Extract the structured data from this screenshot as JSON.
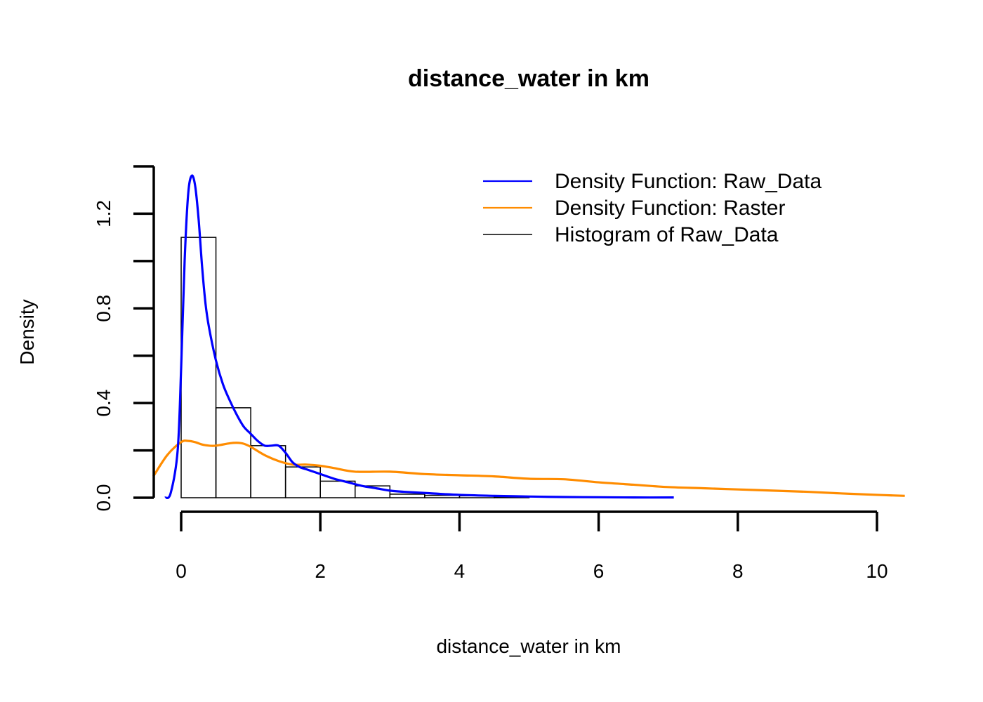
{
  "chart_data": {
    "type": "histogram",
    "title": "distance_water in km",
    "xlabel": "distance_water in km",
    "ylabel": "Density",
    "xlim": [
      -0.4,
      10.4
    ],
    "ylim": [
      0,
      1.4
    ],
    "x_ticks": [
      0,
      2,
      4,
      6,
      8,
      10
    ],
    "y_ticks": [
      0,
      0.2,
      0.4,
      0.6,
      0.8,
      1.0,
      1.2,
      1.4
    ],
    "y_tick_labels": [
      {
        "value": 0.0,
        "label": "0.0"
      },
      {
        "value": 0.4,
        "label": "0.4"
      },
      {
        "value": 0.8,
        "label": "0.8"
      },
      {
        "value": 1.2,
        "label": "1.2"
      }
    ],
    "legend_position": "top-right",
    "histogram": {
      "name": "Histogram of Raw_Data",
      "color": "#000000",
      "bins": [
        {
          "x0": 0.0,
          "x1": 0.5,
          "density": 1.1
        },
        {
          "x0": 0.5,
          "x1": 1.0,
          "density": 0.38
        },
        {
          "x0": 1.0,
          "x1": 1.5,
          "density": 0.22
        },
        {
          "x0": 1.5,
          "x1": 2.0,
          "density": 0.13
        },
        {
          "x0": 2.0,
          "x1": 2.5,
          "density": 0.07
        },
        {
          "x0": 2.5,
          "x1": 3.0,
          "density": 0.05
        },
        {
          "x0": 3.0,
          "x1": 3.5,
          "density": 0.015
        },
        {
          "x0": 3.5,
          "x1": 4.0,
          "density": 0.01
        },
        {
          "x0": 4.0,
          "x1": 4.5,
          "density": 0.008
        },
        {
          "x0": 4.5,
          "x1": 5.0,
          "density": 0.004
        }
      ]
    },
    "series": [
      {
        "name": "Density Function: Raw_Data",
        "color": "#0000ff",
        "x": [
          -0.23,
          -0.15,
          -0.05,
          0.0,
          0.05,
          0.1,
          0.15,
          0.2,
          0.25,
          0.3,
          0.35,
          0.4,
          0.5,
          0.6,
          0.7,
          0.8,
          0.9,
          1.0,
          1.1,
          1.2,
          1.3,
          1.4,
          1.5,
          1.6,
          1.7,
          1.8,
          1.9,
          2.0,
          2.2,
          2.4,
          2.6,
          2.8,
          3.0,
          3.2,
          3.5,
          4.0,
          4.5,
          5.0,
          5.5,
          6.0,
          6.5,
          7.08
        ],
        "y": [
          0.0,
          0.02,
          0.2,
          0.55,
          1.0,
          1.28,
          1.36,
          1.32,
          1.18,
          0.98,
          0.82,
          0.72,
          0.58,
          0.48,
          0.41,
          0.35,
          0.3,
          0.27,
          0.24,
          0.22,
          0.22,
          0.22,
          0.19,
          0.15,
          0.13,
          0.12,
          0.11,
          0.1,
          0.08,
          0.065,
          0.05,
          0.04,
          0.03,
          0.025,
          0.02,
          0.012,
          0.008,
          0.005,
          0.003,
          0.002,
          0.001,
          0.001
        ]
      },
      {
        "name": "Density Function: Raster",
        "color": "#ff8c00",
        "x": [
          -0.4,
          -0.2,
          0.0,
          0.1,
          0.2,
          0.3,
          0.4,
          0.5,
          0.7,
          0.8,
          0.9,
          1.0,
          1.2,
          1.4,
          1.6,
          1.8,
          2.0,
          2.2,
          2.5,
          3.0,
          3.5,
          4.0,
          4.5,
          5.0,
          5.5,
          6.0,
          6.5,
          7.0,
          7.5,
          8.0,
          8.5,
          9.0,
          9.5,
          10.0,
          10.4
        ],
        "y": [
          0.09,
          0.18,
          0.235,
          0.24,
          0.235,
          0.225,
          0.22,
          0.22,
          0.23,
          0.232,
          0.228,
          0.215,
          0.18,
          0.155,
          0.14,
          0.14,
          0.135,
          0.125,
          0.11,
          0.11,
          0.1,
          0.095,
          0.09,
          0.08,
          0.078,
          0.065,
          0.055,
          0.045,
          0.04,
          0.035,
          0.03,
          0.025,
          0.018,
          0.012,
          0.008
        ]
      }
    ]
  }
}
